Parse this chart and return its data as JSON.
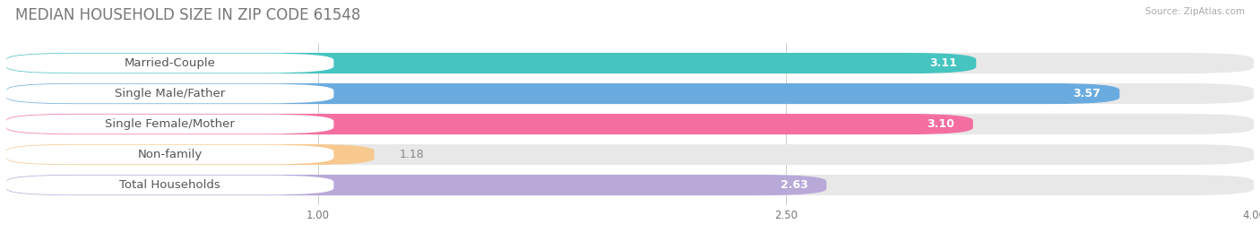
{
  "title": "MEDIAN HOUSEHOLD SIZE IN ZIP CODE 61548",
  "source": "Source: ZipAtlas.com",
  "categories": [
    "Married-Couple",
    "Single Male/Father",
    "Single Female/Mother",
    "Non-family",
    "Total Households"
  ],
  "values": [
    3.11,
    3.57,
    3.1,
    1.18,
    2.63
  ],
  "bar_colors": [
    "#45c4c0",
    "#6aabdf",
    "#f46fa0",
    "#f8c98e",
    "#b8a9d9"
  ],
  "xlim_min": 0,
  "xlim_max": 4.0,
  "xticks": [
    1.0,
    2.5,
    4.0
  ],
  "label_fontsize": 9.5,
  "value_fontsize": 9,
  "title_fontsize": 12,
  "bg_bar_color": "#e8e8e8",
  "label_bg_color": "#ffffff",
  "background_color": "#ffffff",
  "label_text_color": "#555555",
  "value_text_color_inside": "#ffffff",
  "value_text_color_outside": "#888888"
}
